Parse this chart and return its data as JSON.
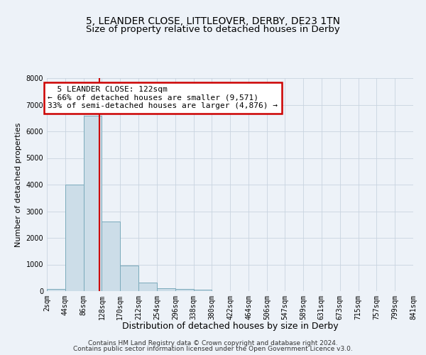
{
  "title": "5, LEANDER CLOSE, LITTLEOVER, DERBY, DE23 1TN",
  "subtitle": "Size of property relative to detached houses in Derby",
  "xlabel": "Distribution of detached houses by size in Derby",
  "ylabel": "Number of detached properties",
  "footer_line1": "Contains HM Land Registry data © Crown copyright and database right 2024.",
  "footer_line2": "Contains public sector information licensed under the Open Government Licence v3.0.",
  "bar_edges": [
    2,
    44,
    86,
    128,
    170,
    212,
    254,
    296,
    338,
    380,
    422,
    464,
    506,
    547,
    589,
    631,
    673,
    715,
    757,
    799,
    841
  ],
  "bar_values": [
    80,
    4000,
    6600,
    2620,
    960,
    330,
    115,
    70,
    50,
    0,
    0,
    0,
    0,
    0,
    0,
    0,
    0,
    0,
    0,
    0
  ],
  "bar_color": "#ccdde8",
  "bar_edge_color": "#7aaabb",
  "bar_linewidth": 0.7,
  "grid_color": "#c8d4e0",
  "background_color": "#edf2f8",
  "property_line_x": 122,
  "property_line_color": "#cc0000",
  "annotation_text": "  5 LEANDER CLOSE: 122sqm\n← 66% of detached houses are smaller (9,571)\n33% of semi-detached houses are larger (4,876) →",
  "annotation_box_color": "#ffffff",
  "annotation_box_edge_color": "#cc0000",
  "ylim": [
    0,
    8000
  ],
  "yticks": [
    0,
    1000,
    2000,
    3000,
    4000,
    5000,
    6000,
    7000,
    8000
  ],
  "xlim_left": 2,
  "xlim_right": 841,
  "title_fontsize": 10,
  "subtitle_fontsize": 9.5,
  "xlabel_fontsize": 9,
  "ylabel_fontsize": 8,
  "tick_fontsize": 7,
  "annotation_fontsize": 8,
  "footer_fontsize": 6.5
}
